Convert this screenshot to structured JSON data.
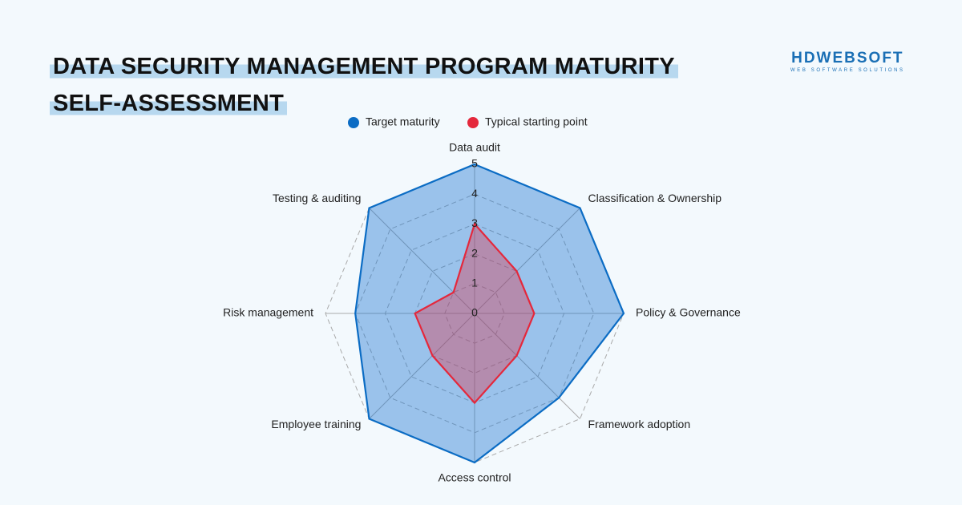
{
  "logo": {
    "name": "HDWEBSOFT",
    "tagline": "WEB SOFTWARE SOLUTIONS"
  },
  "chart_data": {
    "type": "radar",
    "title": "DATA SECURITY MANAGEMENT PROGRAM MATURITY SELF-ASSESSMENT",
    "categories": [
      "Data audit",
      "Classification & Ownership",
      "Policy & Governance",
      "Framework adoption",
      "Access control",
      "Employee training",
      "Risk management",
      "Testing & auditing"
    ],
    "series": [
      {
        "name": "Target maturity",
        "color": "#0b6cc4",
        "values": [
          5,
          5,
          5,
          4,
          5,
          5,
          4,
          5
        ]
      },
      {
        "name": "Typical starting point",
        "color": "#e4283c",
        "values": [
          3,
          2,
          2,
          2,
          3,
          2,
          2,
          1
        ]
      }
    ],
    "rlim": [
      0,
      5
    ],
    "rticks": [
      0,
      1,
      2,
      3,
      4,
      5
    ],
    "grid": true,
    "legend": "top"
  }
}
